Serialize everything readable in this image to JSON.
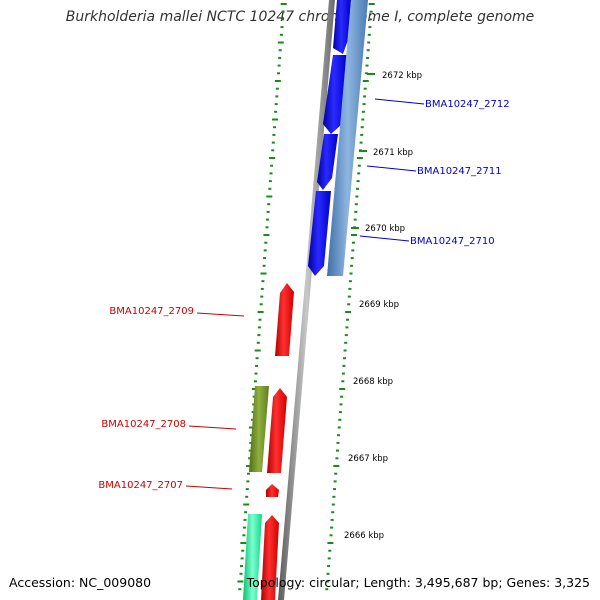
{
  "title": "Burkholderia mallei NCTC 10247 chromosome I, complete genome",
  "accession": "Accession: NC_009080",
  "summary": "Topology: circular; Length: 3,495,687 bp; Genes: 3,325",
  "colors": {
    "backbone": "#8c8c8c",
    "forward_cds": "#0000ee",
    "forward_rna": "#5a8ec8",
    "reverse_cds": "#ee1111",
    "reverse_olive": "#6b8e23",
    "reverse_teal": "#11ee99",
    "ticks": "#1a8a1a",
    "forward_label": "#0000cc",
    "reverse_label": "#cc0000"
  },
  "scale_labels": [
    "2672 kbp",
    "2671 kbp",
    "2670 kbp",
    "2669 kbp",
    "2668 kbp",
    "2667 kbp",
    "2666 kbp"
  ],
  "gene_labels": {
    "forward": [
      "BMA10247_2712",
      "BMA10247_2711",
      "BMA10247_2710"
    ],
    "reverse": [
      "BMA10247_2709",
      "BMA10247_2708",
      "BMA10247_2707"
    ]
  }
}
